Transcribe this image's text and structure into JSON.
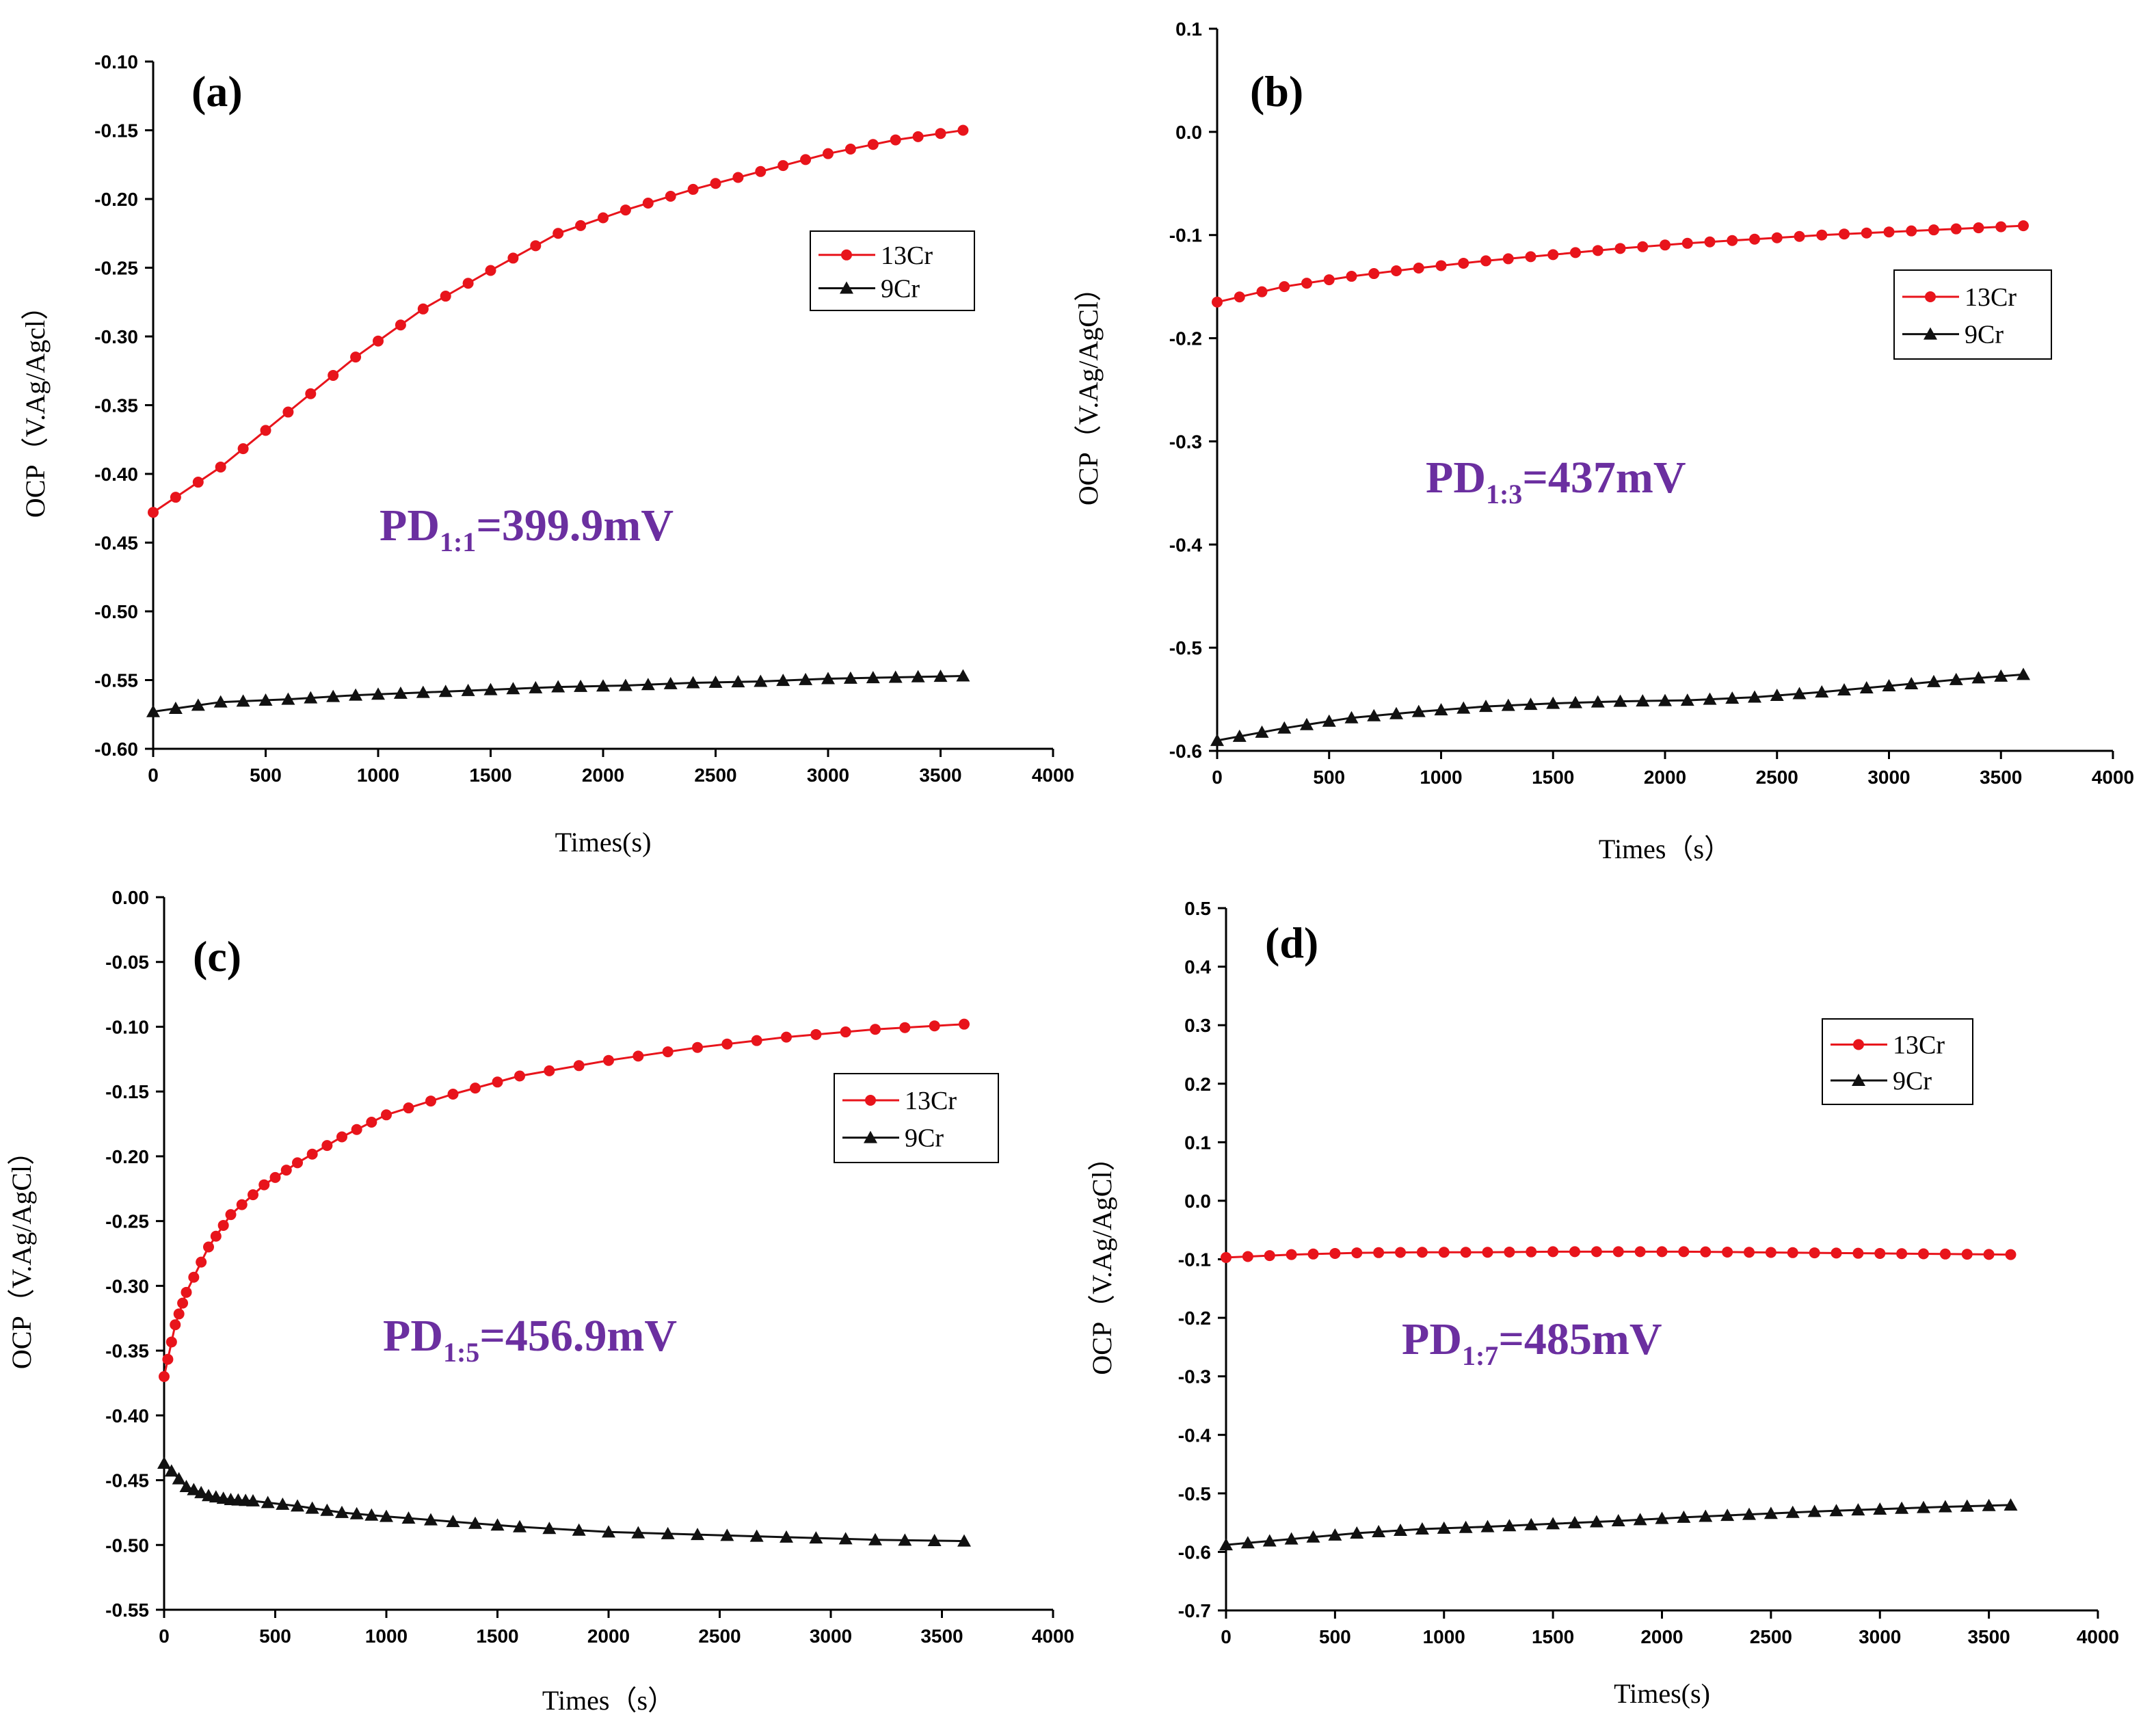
{
  "chart_data": [
    {
      "id": "a",
      "type": "line",
      "panel_label": "(a)",
      "xlabel": "Times(s)",
      "ylabel": "OCP（V.Ag/Agcl）",
      "xlim": [
        0,
        4000
      ],
      "ylim": [
        -0.6,
        -0.1
      ],
      "xticks": [
        0,
        500,
        1000,
        1500,
        2000,
        2500,
        3000,
        3500,
        4000
      ],
      "yticks": [
        -0.6,
        -0.55,
        -0.5,
        -0.45,
        -0.4,
        -0.35,
        -0.3,
        -0.25,
        -0.2,
        -0.15,
        -0.1
      ],
      "ytick_labels": [
        "-0.60",
        "-0.55",
        "-0.50",
        "-0.45",
        "-0.40",
        "-0.35",
        "-0.30",
        "-0.25",
        "-0.20",
        "-0.15",
        "-0.10"
      ],
      "annotation": {
        "prefix": "PD",
        "sub": "1:1",
        "suffix": "=399.9mV"
      },
      "legend": [
        "13Cr",
        "9Cr"
      ],
      "series": [
        {
          "name": "13Cr",
          "color": "#e8141b",
          "marker": "circle",
          "x": [
            0,
            300,
            600,
            900,
            1200,
            1500,
            1800,
            2100,
            2400,
            2700,
            3000,
            3300,
            3600
          ],
          "y": [
            -0.428,
            -0.395,
            -0.355,
            -0.315,
            -0.28,
            -0.252,
            -0.225,
            -0.208,
            -0.193,
            -0.18,
            -0.167,
            -0.157,
            -0.15
          ]
        },
        {
          "name": "9Cr",
          "color": "#111111",
          "marker": "triangle",
          "x": [
            0,
            300,
            600,
            900,
            1200,
            1500,
            1800,
            2100,
            2400,
            2700,
            3000,
            3300,
            3600
          ],
          "y": [
            -0.573,
            -0.566,
            -0.564,
            -0.561,
            -0.559,
            -0.557,
            -0.555,
            -0.554,
            -0.552,
            -0.551,
            -0.549,
            -0.548,
            -0.547
          ]
        }
      ]
    },
    {
      "id": "b",
      "type": "line",
      "panel_label": "(b)",
      "xlabel": "Times（s）",
      "ylabel": "OCP（V.Ag/AgCl）",
      "xlim": [
        0,
        4000
      ],
      "ylim": [
        -0.6,
        0.1
      ],
      "xticks": [
        0,
        500,
        1000,
        1500,
        2000,
        2500,
        3000,
        3500,
        4000
      ],
      "yticks": [
        -0.6,
        -0.5,
        -0.4,
        -0.3,
        -0.2,
        -0.1,
        0.0,
        0.1
      ],
      "ytick_labels": [
        "-0.6",
        "-0.5",
        "-0.4",
        "-0.3",
        "-0.2",
        "-0.1",
        "0.0",
        "0.1"
      ],
      "annotation": {
        "prefix": "PD",
        "sub": "1:3",
        "suffix": "=437mV"
      },
      "legend": [
        "13Cr",
        "9Cr"
      ],
      "series": [
        {
          "name": "13Cr",
          "color": "#e8141b",
          "marker": "circle",
          "x": [
            0,
            300,
            600,
            900,
            1200,
            1500,
            1800,
            2100,
            2400,
            2700,
            3000,
            3300,
            3600
          ],
          "y": [
            -0.165,
            -0.15,
            -0.14,
            -0.132,
            -0.125,
            -0.119,
            -0.113,
            -0.108,
            -0.104,
            -0.1,
            -0.097,
            -0.094,
            -0.091
          ]
        },
        {
          "name": "9Cr",
          "color": "#111111",
          "marker": "triangle",
          "x": [
            0,
            300,
            600,
            900,
            1200,
            1500,
            1800,
            2100,
            2400,
            2700,
            3000,
            3300,
            3600
          ],
          "y": [
            -0.59,
            -0.578,
            -0.568,
            -0.562,
            -0.557,
            -0.554,
            -0.552,
            -0.551,
            -0.548,
            -0.543,
            -0.537,
            -0.531,
            -0.526
          ]
        }
      ]
    },
    {
      "id": "c",
      "type": "line",
      "panel_label": "(c)",
      "xlabel": "Times（s）",
      "ylabel": "OCP（V.Ag/AgCl）",
      "xlim": [
        0,
        4000
      ],
      "ylim": [
        -0.55,
        0.0
      ],
      "xticks": [
        0,
        500,
        1000,
        1500,
        2000,
        2500,
        3000,
        3500,
        4000
      ],
      "yticks": [
        -0.55,
        -0.5,
        -0.45,
        -0.4,
        -0.35,
        -0.3,
        -0.25,
        -0.2,
        -0.15,
        -0.1,
        -0.05,
        0.0
      ],
      "ytick_labels": [
        "-0.55",
        "-0.50",
        "-0.45",
        "-0.40",
        "-0.35",
        "-0.30",
        "-0.25",
        "-0.20",
        "-0.15",
        "-0.10",
        "-0.05",
        "0.00"
      ],
      "annotation": {
        "prefix": "PD",
        "sub": "1:5",
        "suffix": "=456.9mV"
      },
      "legend": [
        "13Cr",
        "9Cr"
      ],
      "series": [
        {
          "name": "13Cr",
          "color": "#e8141b",
          "marker": "circle",
          "x": [
            0,
            50,
            100,
            200,
            300,
            450,
            600,
            800,
            1000,
            1300,
            1600,
            2000,
            2400,
            2800,
            3200,
            3600
          ],
          "y": [
            -0.37,
            -0.33,
            -0.305,
            -0.27,
            -0.245,
            -0.222,
            -0.205,
            -0.185,
            -0.168,
            -0.152,
            -0.138,
            -0.126,
            -0.116,
            -0.108,
            -0.102,
            -0.098
          ]
        },
        {
          "name": "9Cr",
          "color": "#111111",
          "marker": "triangle",
          "x": [
            0,
            100,
            200,
            300,
            400,
            600,
            800,
            1000,
            1300,
            1600,
            2000,
            2400,
            2800,
            3200,
            3600
          ],
          "y": [
            -0.437,
            -0.455,
            -0.462,
            -0.465,
            -0.466,
            -0.47,
            -0.475,
            -0.478,
            -0.482,
            -0.486,
            -0.49,
            -0.492,
            -0.494,
            -0.496,
            -0.497
          ]
        }
      ]
    },
    {
      "id": "d",
      "type": "line",
      "panel_label": "(d)",
      "xlabel": "Times(s)",
      "ylabel": "OCP（V.Ag/AgCl）",
      "xlim": [
        0,
        4000
      ],
      "ylim": [
        -0.7,
        0.5
      ],
      "xticks": [
        0,
        500,
        1000,
        1500,
        2000,
        2500,
        3000,
        3500,
        4000
      ],
      "yticks": [
        -0.7,
        -0.6,
        -0.5,
        -0.4,
        -0.3,
        -0.2,
        -0.1,
        0.0,
        0.1,
        0.2,
        0.3,
        0.4,
        0.5
      ],
      "ytick_labels": [
        "-0.7",
        "-0.6",
        "-0.5",
        "-0.4",
        "-0.3",
        "-0.2",
        "-0.1",
        "0.0",
        "0.1",
        "0.2",
        "0.3",
        "0.4",
        "0.5"
      ],
      "annotation": {
        "prefix": "PD",
        "sub": "1:7",
        "suffix": "=485mV"
      },
      "legend": [
        "13Cr",
        "9Cr"
      ],
      "series": [
        {
          "name": "13Cr",
          "color": "#e8141b",
          "marker": "circle",
          "x": [
            0,
            300,
            600,
            900,
            1200,
            1500,
            1800,
            2100,
            2400,
            2700,
            3000,
            3300,
            3600
          ],
          "y": [
            -0.097,
            -0.092,
            -0.089,
            -0.088,
            -0.088,
            -0.087,
            -0.087,
            -0.087,
            -0.088,
            -0.089,
            -0.09,
            -0.091,
            -0.092
          ]
        },
        {
          "name": "9Cr",
          "color": "#111111",
          "marker": "triangle",
          "x": [
            0,
            300,
            600,
            900,
            1200,
            1500,
            1800,
            2100,
            2400,
            2700,
            3000,
            3300,
            3600
          ],
          "y": [
            -0.588,
            -0.578,
            -0.568,
            -0.561,
            -0.557,
            -0.552,
            -0.547,
            -0.541,
            -0.536,
            -0.531,
            -0.527,
            -0.523,
            -0.52
          ]
        }
      ]
    }
  ]
}
